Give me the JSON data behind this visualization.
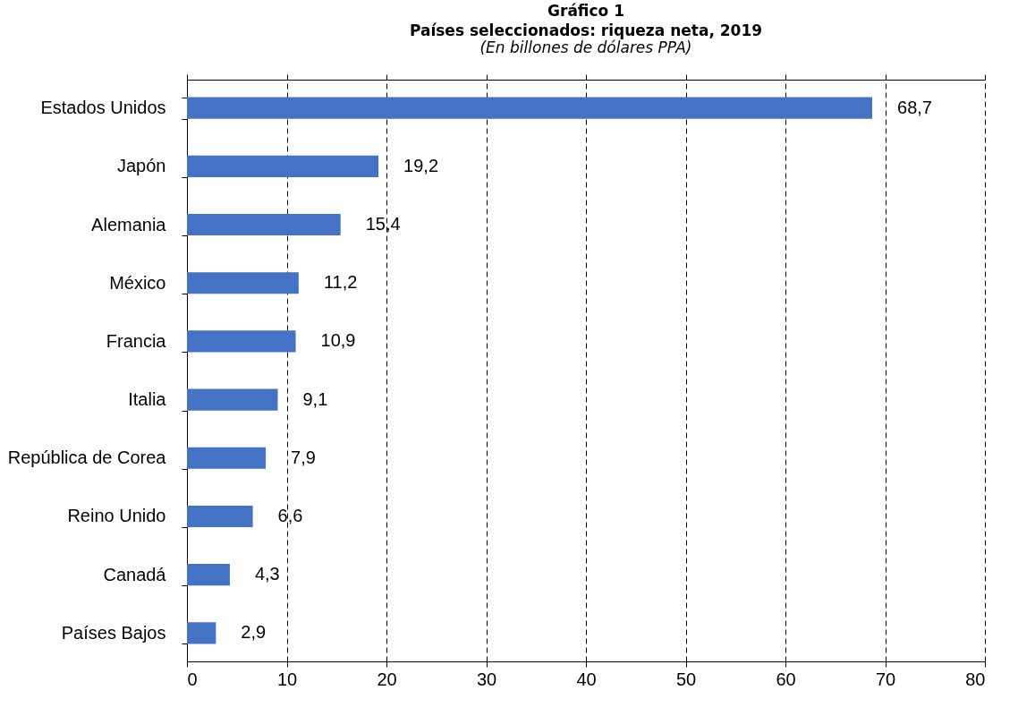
{
  "chart_data": {
    "type": "bar",
    "orientation": "horizontal",
    "title": "Gráfico 1\nPaíses seleccionados: riqueza neta, 2019",
    "subtitle": "(En billones de dólares PPA)",
    "categories": [
      "Estados Unidos",
      "Japón",
      "Alemania",
      "México",
      "Francia",
      "Italia",
      "República de Corea",
      "Reino Unido",
      "Canadá",
      "Países Bajos"
    ],
    "values": [
      68.7,
      19.2,
      15.4,
      11.2,
      10.9,
      9.1,
      7.9,
      6.6,
      4.3,
      2.9
    ],
    "value_labels": [
      "68,7",
      "19,2",
      "15,4",
      "11,2",
      "10,9",
      "9,1",
      "7,9",
      "6,6",
      "4,3",
      "2,9"
    ],
    "color": "#4472c4",
    "xlim": [
      0,
      80
    ],
    "xticks": [
      0,
      10,
      20,
      30,
      40,
      50,
      60,
      70,
      80
    ],
    "grid": "x"
  }
}
